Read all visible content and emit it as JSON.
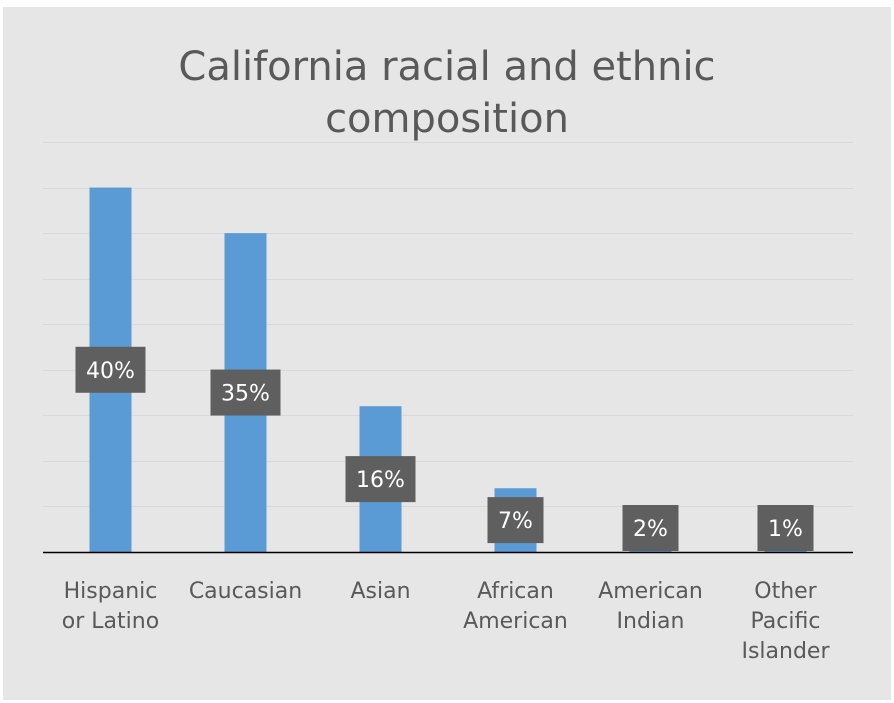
{
  "chart_data": {
    "type": "bar",
    "title_lines": [
      "California racial and ethnic",
      "composition"
    ],
    "categories": [
      [
        "Hispanic",
        "or Latino"
      ],
      [
        "Caucasian"
      ],
      [
        "Asian"
      ],
      [
        "African",
        "American"
      ],
      [
        "American",
        "Indian"
      ],
      [
        "Other",
        "Pacific",
        "Islander"
      ]
    ],
    "values": [
      40,
      35,
      16,
      7,
      2,
      1
    ],
    "data_labels": [
      "40%",
      "35%",
      "16%",
      "7%",
      "2%",
      "1%"
    ],
    "ylim": [
      0,
      45
    ],
    "grid": true,
    "legend": "none",
    "colors": {
      "bar": "#5b9bd5",
      "label_box": "#5f5f5f",
      "label_text": "#ffffff",
      "background": "#e7e6e6",
      "grid": "#d9d9d9",
      "axis": "#000000",
      "text": "#595959"
    }
  }
}
